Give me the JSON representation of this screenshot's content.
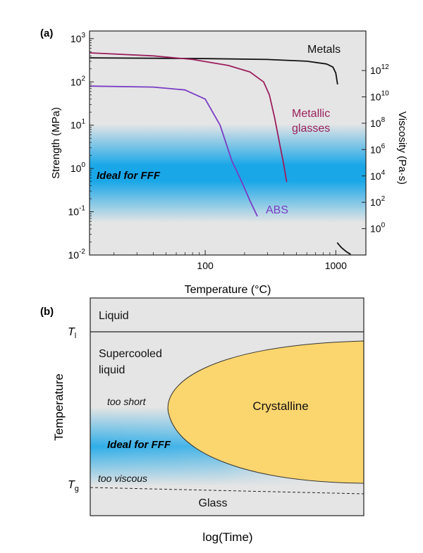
{
  "colors": {
    "panel_bg": "#e5e5e5",
    "fff_band": "#1aa7e8",
    "crystalline": "#fbd56e",
    "metals": "#111111",
    "metallic_glasses": "#9b1f5c",
    "abs": "#7a3cc4"
  },
  "chart_data": [
    {
      "panel": "(a)",
      "type": "line",
      "xlabel": "Temperature (°C)",
      "ylabel": "Strength (MPa)",
      "y2label": "Viscosity (Pa·s)",
      "xscale": "log",
      "yscale": "log",
      "xlim": [
        13,
        1700
      ],
      "ylim": [
        0.01,
        1500
      ],
      "y2lim": [
        0.01,
        1000000000000000
      ],
      "x_ticks": [
        {
          "value": 100,
          "label": "100"
        },
        {
          "value": 1000,
          "label": "1000"
        }
      ],
      "y_ticks": [
        {
          "value": 1000,
          "base": "10",
          "exp": "3"
        },
        {
          "value": 100,
          "base": "10",
          "exp": "2"
        },
        {
          "value": 10,
          "base": "10",
          "exp": "1"
        },
        {
          "value": 1,
          "base": "10",
          "exp": "0"
        },
        {
          "value": 0.1,
          "base": "10",
          "exp": "-1"
        },
        {
          "value": 0.01,
          "base": "10",
          "exp": "-2"
        }
      ],
      "y2_ticks": [
        {
          "value": 1000000000000,
          "base": "10",
          "exp": "12"
        },
        {
          "value": 10000000000,
          "base": "10",
          "exp": "10"
        },
        {
          "value": 100000000,
          "base": "10",
          "exp": "8"
        },
        {
          "value": 1000000,
          "base": "10",
          "exp": "6"
        },
        {
          "value": 10000,
          "base": "10",
          "exp": "4"
        },
        {
          "value": 100,
          "base": "10",
          "exp": "2"
        },
        {
          "value": 1,
          "base": "10",
          "exp": "0"
        }
      ],
      "band": {
        "label": "Ideal for FFF",
        "ymin": 0.1,
        "ymax": 10,
        "center": 0.6
      },
      "series": [
        {
          "name": "Metals",
          "x": [
            13,
            50,
            100,
            300,
            600,
            850,
            950,
            1000,
            1030
          ],
          "y": [
            360,
            350,
            345,
            330,
            300,
            260,
            220,
            160,
            90
          ]
        },
        {
          "name": "Metals",
          "x": [
            1030,
            1100,
            1200,
            1290
          ],
          "y": [
            0.019,
            0.015,
            0.012,
            0.0105
          ]
        },
        {
          "name": "Metallic glasses",
          "x": [
            13,
            40,
            80,
            150,
            220,
            280,
            310,
            340,
            370,
            400,
            420
          ],
          "y": [
            470,
            400,
            330,
            240,
            170,
            100,
            50,
            15,
            4,
            1.2,
            0.5
          ]
        },
        {
          "name": "ABS",
          "x": [
            13,
            40,
            70,
            100,
            130,
            160,
            190,
            220,
            250
          ],
          "y": [
            80,
            76,
            65,
            40,
            10,
            1.5,
            0.5,
            0.18,
            0.08
          ]
        }
      ],
      "series_labels": [
        {
          "name": "Metals",
          "text": "Metals"
        },
        {
          "name": "Metallic glasses",
          "lines": [
            "Metallic",
            "glasses"
          ]
        },
        {
          "name": "ABS",
          "text": "ABS"
        }
      ]
    },
    {
      "panel": "(b)",
      "type": "diagram",
      "xlabel": "log(Time)",
      "ylabel": "Temperature",
      "levels": [
        {
          "name": "T_l",
          "symbol": "T",
          "sub": "l"
        },
        {
          "name": "T_g",
          "symbol": "T",
          "sub": "g"
        }
      ],
      "regions": {
        "liquid": "Liquid",
        "supercooled": [
          "Supercooled",
          "liquid"
        ],
        "too_short": "too short",
        "fff": "Ideal for FFF",
        "too_viscous": "too viscous",
        "crystalline": "Crystalline",
        "glass": "Glass"
      }
    }
  ]
}
